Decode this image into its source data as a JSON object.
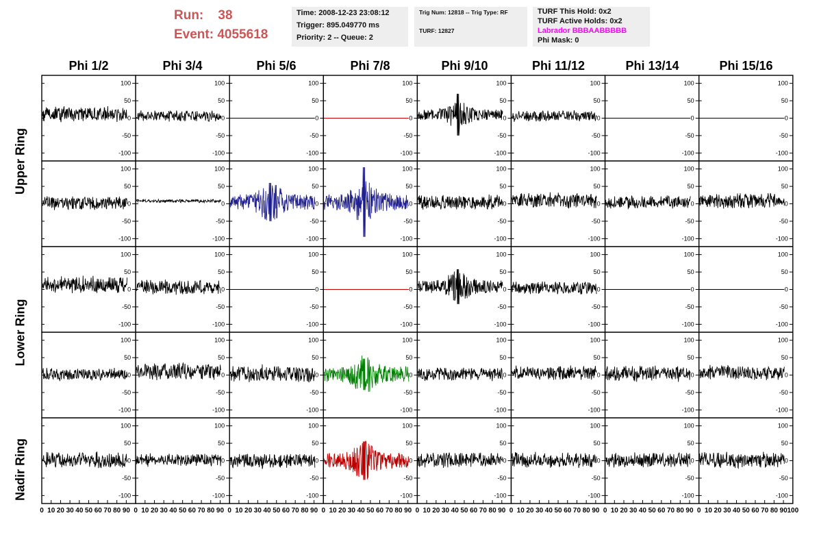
{
  "header": {
    "run_label": "Run:",
    "run_value": "38",
    "event_label": "Event:",
    "event_value": "4055618",
    "time": "Time: 2008-12-23 23:08:12",
    "trigger": "Trigger: 895.049770 ms",
    "priority": "Priority: 2 -- Queue: 2",
    "trig_num": "Trig Num: 12818 -- Trig Type: RF",
    "turf": "TURF: 12827",
    "turf_this_hold": "TURF This Hold: 0x2",
    "turf_active_holds": "TURF Active Holds: 0x2",
    "labrador": "Labrador BBBAABBBBB",
    "phi_mask": "Phi Mask: 0"
  },
  "colors": {
    "header_red": "#cc5555",
    "labrador_magenta": "#ff00ff",
    "trace_default": "#000000",
    "trace_dead": "#cc0000",
    "trace_blue": "#1f1f8f",
    "trace_green": "#008000",
    "trace_red": "#bb0000",
    "panel_bg": "#eeeeee"
  },
  "columns": [
    "Phi 1/2",
    "Phi 3/4",
    "Phi 5/6",
    "Phi 7/8",
    "Phi 9/10",
    "Phi 11/12",
    "Phi 13/14",
    "Phi 15/16"
  ],
  "ring_labels": [
    "Upper Ring",
    "Lower Ring",
    "Nadir Ring"
  ],
  "chart_data": {
    "type": "line",
    "ylim": [
      -115,
      115
    ],
    "yticks": [
      -100,
      -50,
      0,
      50,
      100
    ],
    "xlim": [
      0,
      100
    ],
    "xticks": [
      0,
      10,
      20,
      30,
      40,
      50,
      60,
      70,
      80,
      90,
      100
    ],
    "rows": 5,
    "cols": 8,
    "panels": [
      [
        {
          "kind": "noise",
          "amp": 14,
          "offset": 12,
          "color": "trace_default"
        },
        {
          "kind": "noise",
          "amp": 10,
          "offset": 6,
          "color": "trace_default"
        },
        {
          "kind": "flat",
          "amp": 0,
          "offset": 0,
          "color": "trace_default"
        },
        {
          "kind": "flat",
          "amp": 0,
          "offset": 0,
          "color": "trace_dead"
        },
        {
          "kind": "burst",
          "amp": 15,
          "offset": 10,
          "color": "trace_default",
          "peak": 60
        },
        {
          "kind": "noise",
          "amp": 10,
          "offset": 6,
          "color": "trace_default"
        },
        {
          "kind": "flat",
          "amp": 0,
          "offset": 0,
          "color": "trace_default"
        },
        {
          "kind": "flat",
          "amp": 0,
          "offset": 0,
          "color": "trace_default"
        }
      ],
      [
        {
          "kind": "noise",
          "amp": 12,
          "offset": 2,
          "color": "trace_default"
        },
        {
          "kind": "noise",
          "amp": 3,
          "offset": 8,
          "color": "trace_default"
        },
        {
          "kind": "burst",
          "amp": 22,
          "offset": 5,
          "color": "trace_blue",
          "peak": 55
        },
        {
          "kind": "burst",
          "amp": 24,
          "offset": 5,
          "color": "trace_blue",
          "peak": 100
        },
        {
          "kind": "noise",
          "amp": 14,
          "offset": 4,
          "color": "trace_default"
        },
        {
          "kind": "noise",
          "amp": 14,
          "offset": 10,
          "color": "trace_default"
        },
        {
          "kind": "noise",
          "amp": 12,
          "offset": 4,
          "color": "trace_default"
        },
        {
          "kind": "noise",
          "amp": 14,
          "offset": 8,
          "color": "trace_default"
        }
      ],
      [
        {
          "kind": "noise",
          "amp": 16,
          "offset": 14,
          "color": "trace_default"
        },
        {
          "kind": "noise",
          "amp": 14,
          "offset": 6,
          "color": "trace_default"
        },
        {
          "kind": "flat",
          "amp": 0,
          "offset": 0,
          "color": "trace_default"
        },
        {
          "kind": "flat",
          "amp": 0,
          "offset": 0,
          "color": "trace_dead"
        },
        {
          "kind": "burst",
          "amp": 18,
          "offset": 8,
          "color": "trace_default",
          "peak": 50
        },
        {
          "kind": "noise",
          "amp": 12,
          "offset": 4,
          "color": "trace_default"
        },
        {
          "kind": "flat",
          "amp": 0,
          "offset": 0,
          "color": "trace_default"
        },
        {
          "kind": "flat",
          "amp": 0,
          "offset": 0,
          "color": "trace_default"
        }
      ],
      [
        {
          "kind": "noise",
          "amp": 12,
          "offset": 2,
          "color": "trace_default"
        },
        {
          "kind": "noise",
          "amp": 16,
          "offset": 10,
          "color": "trace_default"
        },
        {
          "kind": "noise",
          "amp": 16,
          "offset": 4,
          "color": "trace_default"
        },
        {
          "kind": "burst",
          "amp": 22,
          "offset": 2,
          "color": "trace_green",
          "peak": 45
        },
        {
          "kind": "noise",
          "amp": 13,
          "offset": 2,
          "color": "trace_default"
        },
        {
          "kind": "noise",
          "amp": 14,
          "offset": 6,
          "color": "trace_default"
        },
        {
          "kind": "noise",
          "amp": 14,
          "offset": 4,
          "color": "trace_default"
        },
        {
          "kind": "noise",
          "amp": 15,
          "offset": 6,
          "color": "trace_default"
        }
      ],
      [
        {
          "kind": "noise",
          "amp": 15,
          "offset": 2,
          "color": "trace_default"
        },
        {
          "kind": "noise",
          "amp": 12,
          "offset": 2,
          "color": "trace_default"
        },
        {
          "kind": "noise",
          "amp": 14,
          "offset": 0,
          "color": "trace_default"
        },
        {
          "kind": "burst",
          "amp": 22,
          "offset": 0,
          "color": "trace_red",
          "peak": 55
        },
        {
          "kind": "noise",
          "amp": 15,
          "offset": 2,
          "color": "trace_default"
        },
        {
          "kind": "noise",
          "amp": 14,
          "offset": 2,
          "color": "trace_default"
        },
        {
          "kind": "noise",
          "amp": 14,
          "offset": 2,
          "color": "trace_default"
        },
        {
          "kind": "noise",
          "amp": 15,
          "offset": 2,
          "color": "trace_default"
        }
      ]
    ]
  }
}
